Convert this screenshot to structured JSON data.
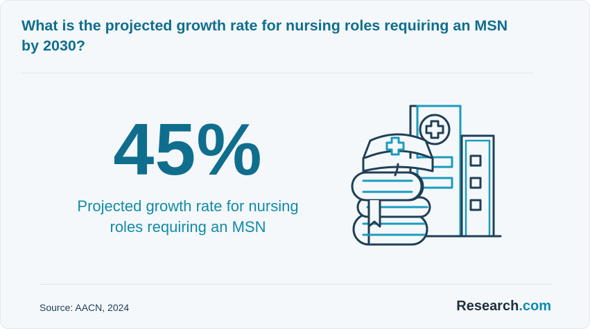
{
  "header": {
    "question": "What is the projected growth rate for nursing roles requiring an MSN by 2030?"
  },
  "stat": {
    "value": "45%",
    "caption": "Projected growth rate for nursing roles requiring an MSN"
  },
  "illustration": {
    "icons": [
      "hospital-building-icon",
      "medical-cross-icon",
      "nurse-cap-icon",
      "stacked-books-icon",
      "bookmark-icon"
    ],
    "colors": {
      "stroke": "#1f3f55",
      "accent": "#1a9bbd"
    }
  },
  "footer": {
    "source": "Source: AACN, 2024",
    "brand_name": "Research",
    "brand_suffix": ".com"
  },
  "colors": {
    "primary": "#0f6e8e",
    "caption": "#128aa8",
    "background": "#f4f8fb"
  }
}
